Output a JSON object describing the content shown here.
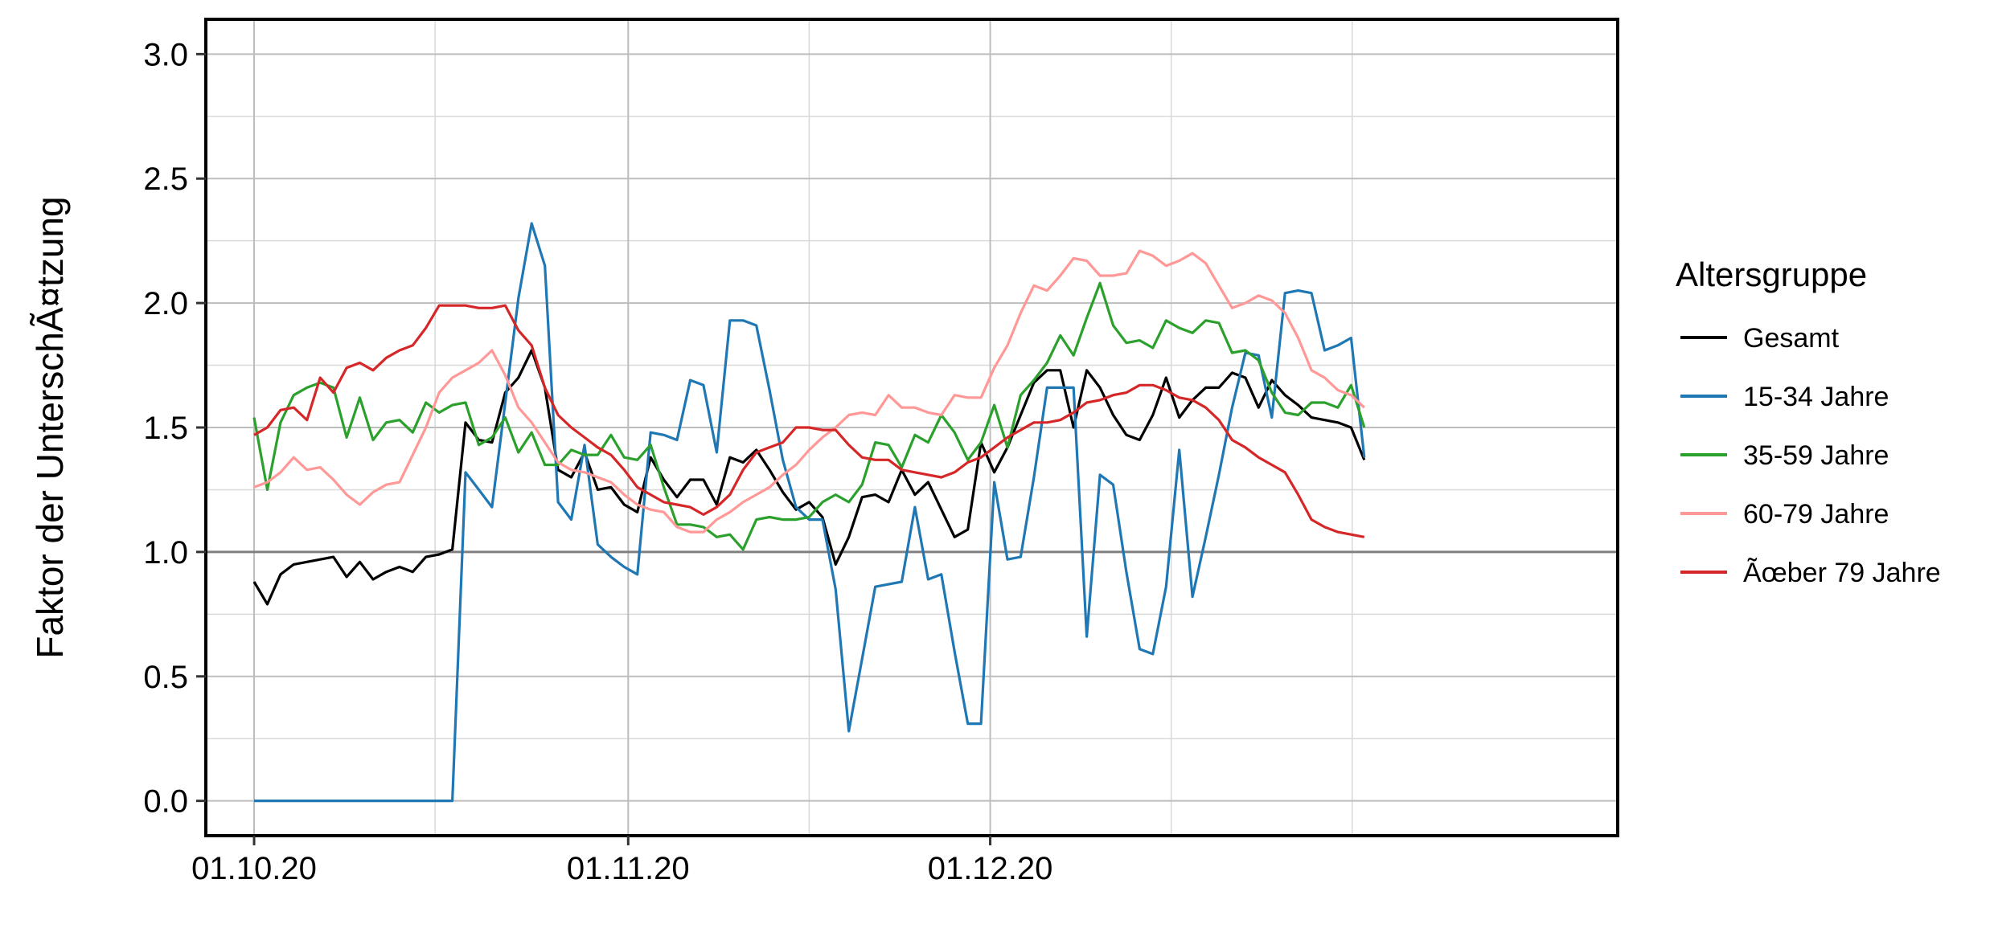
{
  "chart_data": {
    "type": "line",
    "title": "",
    "xlabel": "",
    "ylabel": "Faktor der UnterschÃ¤tzung",
    "ylim": [
      -0.14,
      3.14
    ],
    "xlim": [
      "2020-09-27",
      "2021-01-22"
    ],
    "x_start": "2020-10-01",
    "x_end": "2021-01-01",
    "x_ticks": [
      {
        "date": "2020-10-01",
        "label": "01.10.20"
      },
      {
        "date": "2020-11-01",
        "label": "01.11.20"
      },
      {
        "date": "2020-12-01",
        "label": "01.12.20"
      }
    ],
    "x_minor_ticks": [
      "2020-10-16",
      "2020-11-16",
      "2020-12-16",
      "2020-12-31"
    ],
    "y_ticks": [
      {
        "value": 0.0,
        "label": "0.0"
      },
      {
        "value": 0.5,
        "label": "0.5"
      },
      {
        "value": 1.0,
        "label": "1.0"
      },
      {
        "value": 1.5,
        "label": "1.5"
      },
      {
        "value": 2.0,
        "label": "2.0"
      },
      {
        "value": 2.5,
        "label": "2.5"
      },
      {
        "value": 3.0,
        "label": "3.0"
      }
    ],
    "y_minor_ticks": [
      0.25,
      0.75,
      1.25,
      1.75,
      2.25,
      2.75
    ],
    "reference_line": {
      "value": 1.0,
      "color": "#808080"
    },
    "grid": true,
    "legend": {
      "title": "Altersgruppe",
      "position": "right"
    },
    "series": [
      {
        "name": "Gesamt",
        "color": "#000000",
        "values": [
          0.88,
          0.79,
          0.91,
          0.95,
          0.96,
          0.97,
          0.98,
          0.9,
          0.96,
          0.89,
          0.92,
          0.94,
          0.92,
          0.98,
          0.99,
          1.01,
          1.52,
          1.45,
          1.44,
          1.64,
          1.7,
          1.81,
          1.66,
          1.33,
          1.3,
          1.4,
          1.25,
          1.26,
          1.19,
          1.16,
          1.38,
          1.29,
          1.22,
          1.29,
          1.29,
          1.19,
          1.38,
          1.36,
          1.41,
          1.33,
          1.24,
          1.17,
          1.2,
          1.14,
          0.95,
          1.06,
          1.22,
          1.23,
          1.2,
          1.33,
          1.23,
          1.28,
          1.17,
          1.06,
          1.09,
          1.44,
          1.32,
          1.42,
          1.55,
          1.68,
          1.73,
          1.73,
          1.5,
          1.73,
          1.66,
          1.55,
          1.47,
          1.45,
          1.55,
          1.7,
          1.54,
          1.61,
          1.66,
          1.66,
          1.72,
          1.7,
          1.58,
          1.69,
          1.63,
          1.59,
          1.54,
          1.53,
          1.52,
          1.5,
          1.37
        ]
      },
      {
        "name": "15-34 Jahre",
        "color": "#1f77b4",
        "values": [
          0,
          0,
          0,
          0,
          0,
          0,
          0,
          0,
          0,
          0,
          0,
          0,
          0,
          0,
          0,
          0,
          1.32,
          1.25,
          1.18,
          1.6,
          2.02,
          2.32,
          2.15,
          1.2,
          1.13,
          1.43,
          1.03,
          0.98,
          0.94,
          0.91,
          1.48,
          1.47,
          1.45,
          1.69,
          1.67,
          1.4,
          1.93,
          1.93,
          1.91,
          1.65,
          1.37,
          1.18,
          1.13,
          1.13,
          0.85,
          0.28,
          0.57,
          0.86,
          0.87,
          0.88,
          1.18,
          0.89,
          0.91,
          0.6,
          0.31,
          0.31,
          1.28,
          0.97,
          0.98,
          1.3,
          1.66,
          1.66,
          1.66,
          0.66,
          1.31,
          1.27,
          0.92,
          0.61,
          0.59,
          0.86,
          1.41,
          0.82,
          1.06,
          1.31,
          1.58,
          1.8,
          1.79,
          1.54,
          2.04,
          2.05,
          2.04,
          1.81,
          1.83,
          1.86,
          1.38
        ]
      },
      {
        "name": "35-59 Jahre",
        "color": "#2ca02c",
        "values": [
          1.54,
          1.25,
          1.52,
          1.63,
          1.66,
          1.68,
          1.66,
          1.46,
          1.62,
          1.45,
          1.52,
          1.53,
          1.48,
          1.6,
          1.56,
          1.59,
          1.6,
          1.43,
          1.46,
          1.54,
          1.4,
          1.48,
          1.35,
          1.35,
          1.41,
          1.39,
          1.39,
          1.47,
          1.38,
          1.37,
          1.43,
          1.26,
          1.11,
          1.11,
          1.1,
          1.06,
          1.07,
          1.01,
          1.13,
          1.14,
          1.13,
          1.13,
          1.14,
          1.2,
          1.23,
          1.2,
          1.27,
          1.44,
          1.43,
          1.34,
          1.47,
          1.44,
          1.55,
          1.48,
          1.37,
          1.44,
          1.59,
          1.42,
          1.63,
          1.69,
          1.76,
          1.87,
          1.79,
          1.94,
          2.08,
          1.91,
          1.84,
          1.85,
          1.82,
          1.93,
          1.9,
          1.88,
          1.93,
          1.92,
          1.8,
          1.81,
          1.77,
          1.64,
          1.56,
          1.55,
          1.6,
          1.6,
          1.58,
          1.67,
          1.5
        ]
      },
      {
        "name": "60-79 Jahre",
        "color": "#ff9896",
        "values": [
          1.26,
          1.28,
          1.32,
          1.38,
          1.33,
          1.34,
          1.29,
          1.23,
          1.19,
          1.24,
          1.27,
          1.28,
          1.39,
          1.5,
          1.64,
          1.7,
          1.73,
          1.76,
          1.81,
          1.71,
          1.58,
          1.52,
          1.44,
          1.36,
          1.33,
          1.32,
          1.3,
          1.28,
          1.23,
          1.19,
          1.17,
          1.16,
          1.1,
          1.08,
          1.08,
          1.13,
          1.16,
          1.2,
          1.23,
          1.26,
          1.31,
          1.35,
          1.41,
          1.46,
          1.5,
          1.55,
          1.56,
          1.55,
          1.63,
          1.58,
          1.58,
          1.56,
          1.55,
          1.63,
          1.62,
          1.62,
          1.74,
          1.83,
          1.96,
          2.07,
          2.05,
          2.11,
          2.18,
          2.17,
          2.11,
          2.11,
          2.12,
          2.21,
          2.19,
          2.15,
          2.17,
          2.2,
          2.16,
          2.07,
          1.98,
          2.0,
          2.03,
          2.01,
          1.96,
          1.86,
          1.73,
          1.7,
          1.65,
          1.63,
          1.58
        ]
      },
      {
        "name": "Ãœber 79 Jahre",
        "color": "#d62728",
        "values": [
          1.47,
          1.5,
          1.57,
          1.58,
          1.53,
          1.7,
          1.64,
          1.74,
          1.76,
          1.73,
          1.78,
          1.81,
          1.83,
          1.9,
          1.99,
          1.99,
          1.99,
          1.98,
          1.98,
          1.99,
          1.89,
          1.83,
          1.66,
          1.55,
          1.5,
          1.46,
          1.42,
          1.39,
          1.33,
          1.26,
          1.23,
          1.2,
          1.19,
          1.18,
          1.15,
          1.18,
          1.23,
          1.33,
          1.4,
          1.42,
          1.44,
          1.5,
          1.5,
          1.49,
          1.49,
          1.43,
          1.38,
          1.37,
          1.37,
          1.33,
          1.32,
          1.31,
          1.3,
          1.32,
          1.36,
          1.38,
          1.42,
          1.46,
          1.49,
          1.52,
          1.52,
          1.53,
          1.56,
          1.6,
          1.61,
          1.63,
          1.64,
          1.67,
          1.67,
          1.65,
          1.62,
          1.61,
          1.58,
          1.53,
          1.45,
          1.42,
          1.38,
          1.35,
          1.32,
          1.23,
          1.13,
          1.1,
          1.08,
          1.07,
          1.06
        ]
      }
    ]
  }
}
